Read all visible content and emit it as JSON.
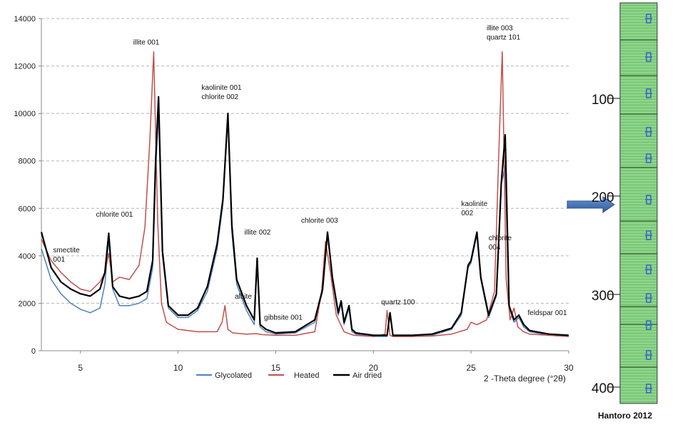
{
  "chart_data": {
    "type": "line",
    "xlabel": "2 -Theta degree (°2θ)",
    "ylim": [
      0,
      14000
    ],
    "xlim": [
      3,
      30
    ],
    "yticks": [
      "0",
      "2000",
      "4000",
      "6000",
      "8000",
      "10000",
      "12000",
      "14000"
    ],
    "xticks": [
      "5",
      "10",
      "15",
      "20",
      "25",
      "30"
    ],
    "grid": "horizontal dashed",
    "legend_position": "bottom-center",
    "series": [
      {
        "name": "Glycolated",
        "color": "#4f81bd",
        "x": [
          3.0,
          3.5,
          4.0,
          4.5,
          5.0,
          5.5,
          6.0,
          6.25,
          6.45,
          6.65,
          7.0,
          7.5,
          8.0,
          8.4,
          8.7,
          8.85,
          9.0,
          9.2,
          9.5,
          10.0,
          10.5,
          11.0,
          11.5,
          12.0,
          12.3,
          12.55,
          12.75,
          13.0,
          13.5,
          13.9,
          14.05,
          14.2,
          14.5,
          15.0,
          16.0,
          17.0,
          17.4,
          17.65,
          17.9,
          18.2,
          18.35,
          18.5,
          18.75,
          18.9,
          19.1,
          20.0,
          20.7,
          20.85,
          21.0,
          22.0,
          23.0,
          24.0,
          24.5,
          24.85,
          25.0,
          25.3,
          25.5,
          25.9,
          26.3,
          26.55,
          26.75,
          26.95,
          27.2,
          27.45,
          27.7,
          28.0,
          29.0,
          30.0
        ],
        "values": [
          4300,
          3000,
          2400,
          2000,
          1750,
          1600,
          1800,
          2800,
          4700,
          2600,
          1900,
          1900,
          2000,
          2200,
          3500,
          7600,
          10000,
          4000,
          1800,
          1400,
          1400,
          1700,
          2500,
          4300,
          6200,
          9800,
          5000,
          2800,
          1700,
          1100,
          3700,
          1000,
          800,
          700,
          750,
          1200,
          2500,
          4900,
          3000,
          1500,
          2000,
          1100,
          1800,
          800,
          700,
          600,
          600,
          1500,
          600,
          600,
          650,
          900,
          1500,
          3500,
          3700,
          4900,
          3000,
          1400,
          2300,
          7000,
          7800,
          1800,
          1200,
          1400,
          1000,
          800,
          650,
          600
        ]
      },
      {
        "name": "Heated",
        "color": "#c0504d",
        "x": [
          3.0,
          3.5,
          4.0,
          4.5,
          5.0,
          5.5,
          6.0,
          6.25,
          6.45,
          6.65,
          7.0,
          7.5,
          8.0,
          8.3,
          8.55,
          8.75,
          8.95,
          9.15,
          9.4,
          10.0,
          11.0,
          12.0,
          12.25,
          12.4,
          12.55,
          12.8,
          13.5,
          14.0,
          14.3,
          15.0,
          16.0,
          17.0,
          17.35,
          17.55,
          17.8,
          18.1,
          18.5,
          19.0,
          20.0,
          20.6,
          20.7,
          20.85,
          21.0,
          22.0,
          23.0,
          24.0,
          24.8,
          25.0,
          25.3,
          25.8,
          26.2,
          26.45,
          26.6,
          26.8,
          27.0,
          27.2,
          27.4,
          27.7,
          28.0,
          29.0,
          30.0
        ],
        "values": [
          4700,
          3800,
          3300,
          2900,
          2600,
          2500,
          2900,
          3300,
          4100,
          2900,
          3100,
          3000,
          3600,
          5200,
          8800,
          12600,
          5500,
          2000,
          1200,
          900,
          800,
          800,
          1200,
          1900,
          900,
          750,
          700,
          720,
          680,
          650,
          650,
          800,
          2500,
          4600,
          3300,
          1500,
          800,
          650,
          600,
          700,
          1700,
          650,
          600,
          600,
          620,
          700,
          900,
          1200,
          1100,
          1300,
          2500,
          9000,
          12600,
          3000,
          1300,
          1800,
          1000,
          800,
          700,
          650,
          600
        ]
      },
      {
        "name": "Air dried",
        "color": "#000000",
        "x": [
          3.0,
          3.5,
          4.0,
          4.5,
          5.0,
          5.5,
          6.0,
          6.25,
          6.45,
          6.65,
          7.0,
          7.5,
          8.0,
          8.4,
          8.7,
          8.85,
          9.0,
          9.2,
          9.5,
          10.0,
          10.5,
          11.0,
          11.5,
          12.0,
          12.3,
          12.55,
          12.75,
          13.0,
          13.5,
          13.9,
          14.05,
          14.2,
          14.5,
          15.0,
          16.0,
          17.0,
          17.4,
          17.65,
          17.9,
          18.2,
          18.35,
          18.5,
          18.75,
          18.9,
          19.1,
          20.0,
          20.7,
          20.85,
          21.0,
          22.0,
          23.0,
          24.0,
          24.5,
          24.85,
          25.0,
          25.3,
          25.5,
          25.9,
          26.3,
          26.55,
          26.75,
          26.95,
          27.2,
          27.45,
          27.7,
          28.0,
          29.0,
          30.0
        ],
        "values": [
          5000,
          3500,
          2900,
          2600,
          2400,
          2300,
          2600,
          3300,
          4950,
          2700,
          2300,
          2200,
          2300,
          2500,
          3800,
          8000,
          10700,
          4200,
          1900,
          1500,
          1500,
          1800,
          2700,
          4500,
          6400,
          10000,
          5300,
          3000,
          1900,
          1300,
          3900,
          1100,
          900,
          750,
          800,
          1300,
          2600,
          5000,
          3100,
          1600,
          2100,
          1200,
          1900,
          900,
          750,
          650,
          650,
          1600,
          650,
          650,
          700,
          950,
          1600,
          3600,
          3800,
          5000,
          3100,
          1500,
          2400,
          7100,
          9100,
          1900,
          1300,
          1500,
          1100,
          850,
          700,
          650
        ]
      }
    ],
    "annotations": [
      {
        "lines": [
          "smectite",
          "001"
        ],
        "x": 3.6,
        "y": 4150
      },
      {
        "lines": [
          "chlorite 001"
        ],
        "x": 5.8,
        "y": 5650
      },
      {
        "lines": [
          "illite 001"
        ],
        "x": 7.7,
        "y": 12900
      },
      {
        "lines": [
          "kaolinite 001",
          "chlorite 002"
        ],
        "x": 11.2,
        "y": 11000
      },
      {
        "lines": [
          "illite 002"
        ],
        "x": 13.4,
        "y": 4900
      },
      {
        "lines": [
          "albite"
        ],
        "x": 12.9,
        "y": 2200
      },
      {
        "lines": [
          "gibbsite 001"
        ],
        "x": 14.4,
        "y": 1300
      },
      {
        "lines": [
          "chlorite 003"
        ],
        "x": 16.3,
        "y": 5400
      },
      {
        "lines": [
          "quartz 100"
        ],
        "x": 20.4,
        "y": 1950
      },
      {
        "lines": [
          "kaolinite",
          "002"
        ],
        "x": 24.5,
        "y": 6100
      },
      {
        "lines": [
          "chlorite",
          "004"
        ],
        "x": 25.9,
        "y": 4650
      },
      {
        "lines": [
          "illite 003",
          "quartz 101"
        ],
        "x": 25.8,
        "y": 13500
      },
      {
        "lines": [
          "feldspar 001"
        ],
        "x": 27.9,
        "y": 1500
      }
    ]
  },
  "depth_scale": {
    "labels": [
      "100",
      "200",
      "300",
      "400"
    ],
    "fill_color": "#8dd48a",
    "stripe_color": "#6cbf6a",
    "marker_color": "#3a6bc4",
    "arrow_color": "#3f6fb1",
    "credit": "Hantoro 2012"
  }
}
